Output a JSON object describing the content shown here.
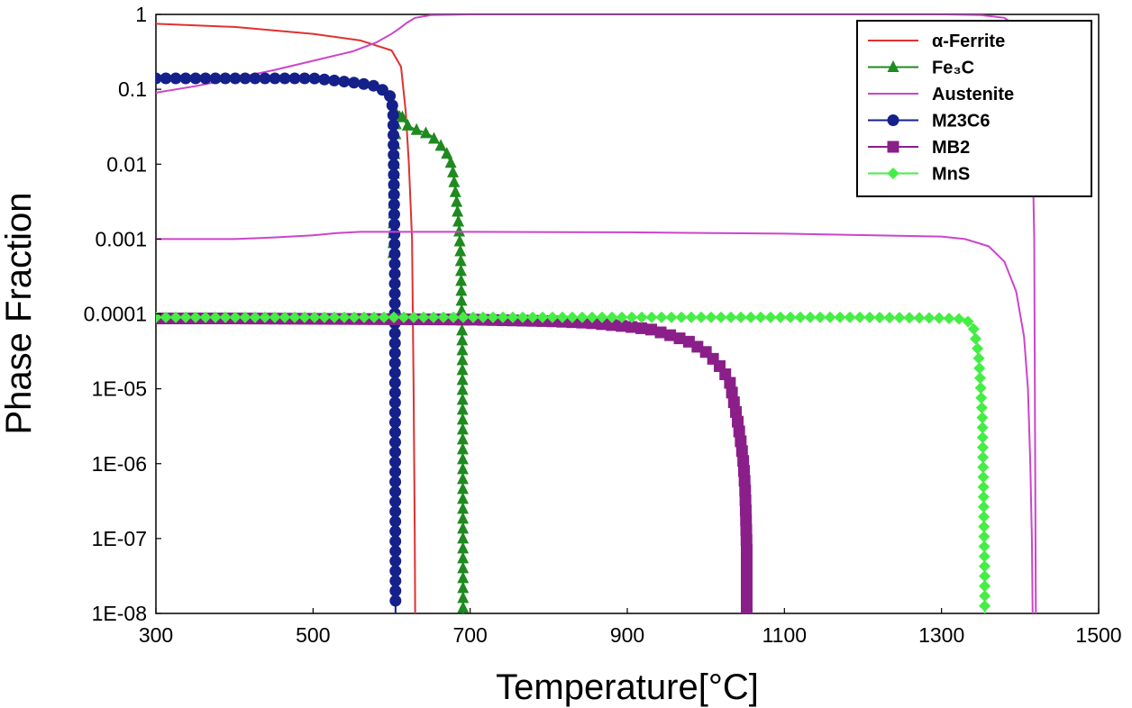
{
  "chart_data": {
    "type": "line",
    "xlabel": "Temperature[°C]",
    "ylabel": "Phase Fraction",
    "xlim": [
      300,
      1500
    ],
    "ylim": [
      1e-08,
      1
    ],
    "yscale": "log",
    "grid": false,
    "legend_position": "top-right",
    "x_ticks": [
      "300",
      "500",
      "700",
      "900",
      "1100",
      "1300",
      "1500"
    ],
    "y_ticks": [
      "1E-08",
      "1E-07",
      "1E-06",
      "1E-05",
      "0.0001",
      "0.001",
      "0.01",
      "0.1",
      "1"
    ],
    "series": [
      {
        "name": "α-Ferrite",
        "color": "#e03030",
        "marker": "none",
        "x": [
          300,
          400,
          500,
          560,
          600,
          612,
          618,
          622,
          626,
          628,
          629.5,
          630,
          630
        ],
        "y": [
          0.75,
          0.68,
          0.55,
          0.45,
          0.33,
          0.2,
          0.05,
          0.01,
          0.001,
          1e-05,
          1e-07,
          1e-08,
          1e-08
        ]
      },
      {
        "name": "Fe₃C",
        "color": "#1f8a1f",
        "marker": "triangle",
        "x": [
          602,
          603,
          604,
          605,
          606,
          610,
          615,
          620,
          625,
          630,
          640,
          650,
          660,
          670,
          677,
          683,
          686,
          688,
          689,
          690,
          690.5,
          691
        ],
        "y": [
          0.00065,
          0.0065,
          0.017,
          0.025,
          0.045,
          0.05,
          0.04,
          0.033,
          0.031,
          0.029,
          0.027,
          0.024,
          0.019,
          0.014,
          0.0095,
          0.003,
          0.0013,
          0.00055,
          0.00014,
          3.5e-05,
          3e-06,
          1e-08
        ]
      },
      {
        "name": "Austenite",
        "color": "#cc44cc",
        "marker": "none",
        "x": [
          300,
          350,
          400,
          450,
          500,
          550,
          580,
          600,
          610,
          620,
          630,
          650,
          700,
          800,
          1000,
          1300,
          1350,
          1380,
          1400,
          1410,
          1415,
          1418,
          1420
        ],
        "y": [
          0.09,
          0.11,
          0.14,
          0.18,
          0.24,
          0.32,
          0.42,
          0.55,
          0.65,
          0.78,
          0.9,
          0.98,
          1,
          1,
          1,
          1,
          0.98,
          0.9,
          0.65,
          0.3,
          0.05,
          0.001,
          1e-08
        ]
      },
      {
        "name": "M23C6",
        "color": "#15208a",
        "marker": "circle",
        "x": [
          300,
          350,
          400,
          450,
          500,
          530,
          560,
          580,
          595,
          600,
          602,
          603,
          604,
          604.5,
          605
        ],
        "y": [
          0.14,
          0.14,
          0.14,
          0.14,
          0.14,
          0.13,
          0.12,
          0.11,
          0.09,
          0.075,
          0.047,
          0.005,
          0.00055,
          5e-06,
          1e-08
        ]
      },
      {
        "name": "MB2",
        "color": "#8a1f8a",
        "marker": "square",
        "x": [
          300,
          400,
          500,
          600,
          700,
          800,
          850,
          900,
          930,
          960,
          980,
          1000,
          1015,
          1030,
          1040,
          1045,
          1048,
          1050,
          1051,
          1052,
          1052,
          1052
        ],
        "y": [
          8.7e-05,
          8.7e-05,
          8.6e-05,
          8.5e-05,
          8.4e-05,
          8e-05,
          7.6e-05,
          6.8e-05,
          6.2e-05,
          5e-05,
          4.2e-05,
          3.1e-05,
          2.2e-05,
          1.3e-05,
          4e-06,
          1.8e-06,
          1e-06,
          4.5e-07,
          2e-07,
          7.5e-08,
          1.5e-08,
          1e-08
        ]
      },
      {
        "name": "MnS",
        "color": "#44ee44",
        "marker": "diamond",
        "x": [
          300,
          400,
          500,
          600,
          700,
          800,
          900,
          1000,
          1100,
          1200,
          1300,
          1330,
          1340,
          1347,
          1350,
          1352,
          1354,
          1355,
          1355
        ],
        "y": [
          9e-05,
          9e-05,
          9e-05,
          9e-05,
          9e-05,
          9e-05,
          9e-05,
          9e-05,
          9e-05,
          9e-05,
          8.8e-05,
          8.5e-05,
          7e-05,
          3e-05,
          1e-05,
          4e-06,
          1.6e-07,
          3e-08,
          1e-08
        ]
      },
      {
        "name": "",
        "color": "#cc44cc",
        "marker": "none",
        "x": [
          300,
          350,
          400,
          450,
          500,
          530,
          560,
          700,
          900,
          1100,
          1300,
          1330,
          1360,
          1380,
          1395,
          1405,
          1410,
          1413,
          1415,
          1416
        ],
        "y": [
          0.001,
          0.001,
          0.001,
          0.00105,
          0.00112,
          0.0012,
          0.00125,
          0.00125,
          0.00123,
          0.00118,
          0.00108,
          0.001,
          0.0008,
          0.0005,
          0.0002,
          5e-05,
          1e-05,
          1e-06,
          1e-07,
          1e-08
        ]
      }
    ]
  }
}
